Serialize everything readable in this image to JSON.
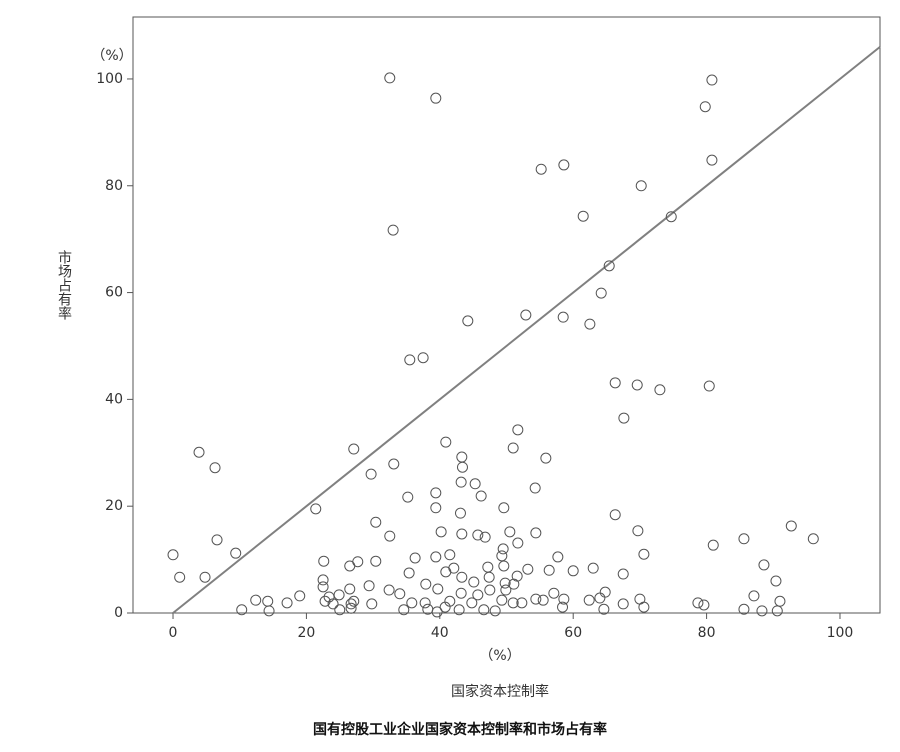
{
  "chart_data": {
    "type": "scatter",
    "caption": "国有控股工业企业国家资本控制率和市场占有率",
    "xlabel": "国家资本控制率",
    "ylabel": "市场占有率",
    "x_unit": "（%）",
    "y_unit": "（%）",
    "xlim": [
      -6,
      106
    ],
    "ylim": [
      0,
      111.6
    ],
    "xticks": [
      0,
      20,
      40,
      60,
      80,
      100
    ],
    "yticks": [
      0,
      20,
      40,
      60,
      80,
      100
    ],
    "color": "#555555",
    "reference_line": {
      "x": [
        0,
        106
      ],
      "y": [
        0,
        106
      ],
      "color": "#808080"
    },
    "x": [
      32.5,
      39.4,
      80.8,
      79.8,
      80.8,
      58.6,
      55.2,
      70.2,
      61.5,
      74.7,
      33,
      65.4,
      64.2,
      52.9,
      44.2,
      58.5,
      62.5,
      35.5,
      37.5,
      66.3,
      69.6,
      80.4,
      73,
      67.6,
      40.9,
      51.7,
      3.9,
      6.3,
      27.1,
      43.3,
      43.4,
      55.9,
      51,
      33.1,
      29.7,
      43.2,
      45.3,
      46.2,
      54.3,
      35.2,
      39.4,
      39.4,
      49.6,
      21.4,
      43.1,
      66.3,
      30.4,
      40.2,
      43.3,
      45.7,
      46.8,
      50.5,
      54.4,
      69.7,
      92.7,
      96,
      85.6,
      6.6,
      32.5,
      51.7,
      81,
      49.5,
      9.4,
      0,
      70.6,
      41.5,
      39.4,
      36.3,
      49.3,
      57.7,
      22.6,
      27.7,
      30.4,
      26.5,
      49.6,
      63,
      88.6,
      42.1,
      47.2,
      53.2,
      56.4,
      60,
      1,
      4.8,
      67.5,
      35.4,
      40.9,
      43.3,
      47.4,
      51.6,
      22.5,
      90.4,
      49.8,
      29.4,
      37.9,
      45.1,
      51.1,
      22.5,
      26.5,
      32.4,
      39.7,
      47.5,
      49.9,
      43.2,
      57.1,
      64.8,
      87.1,
      23.4,
      24.9,
      34,
      45.7,
      19,
      12.4,
      14.2,
      22.8,
      27.1,
      35.8,
      41.5,
      49.3,
      54.4,
      58.6,
      62.4,
      64,
      70,
      91,
      17.1,
      24,
      26.7,
      29.8,
      37.8,
      44.8,
      51,
      52.3,
      55.5,
      67.5,
      78.7,
      79.6,
      10.3,
      14.4,
      25,
      26.7,
      34.6,
      38.2,
      40.8,
      42.9,
      46.6,
      48.3,
      58.4,
      64.6,
      70.6,
      85.6,
      88.3,
      90.6,
      39.6
    ],
    "y": [
      100.2,
      96.4,
      99.8,
      94.8,
      84.8,
      83.9,
      83.1,
      80,
      74.3,
      74.2,
      71.7,
      65,
      59.9,
      55.8,
      54.7,
      55.4,
      54.1,
      47.4,
      47.8,
      43.1,
      42.7,
      42.5,
      41.8,
      36.5,
      32,
      34.3,
      30.1,
      27.2,
      30.7,
      29.2,
      27.3,
      29,
      30.9,
      27.9,
      26,
      24.5,
      24.2,
      21.9,
      23.4,
      21.7,
      22.5,
      19.7,
      19.7,
      19.5,
      18.7,
      18.4,
      17,
      15.2,
      14.8,
      14.6,
      14.2,
      15.2,
      15,
      15.4,
      16.3,
      13.9,
      13.9,
      13.7,
      14.4,
      13.1,
      12.7,
      12,
      11.2,
      10.9,
      11,
      10.9,
      10.5,
      10.3,
      10.7,
      10.5,
      9.7,
      9.6,
      9.7,
      8.8,
      8.8,
      8.4,
      9,
      8.4,
      8.6,
      8.2,
      8,
      7.9,
      6.7,
      6.7,
      7.3,
      7.5,
      7.7,
      6.7,
      6.7,
      6.9,
      6.2,
      6,
      5.6,
      5.1,
      5.4,
      5.8,
      5.4,
      4.9,
      4.5,
      4.3,
      4.5,
      4.3,
      4.3,
      3.7,
      3.7,
      3.9,
      3.2,
      3,
      3.4,
      3.6,
      3.4,
      3.2,
      2.4,
      2.2,
      2.2,
      2.2,
      1.9,
      2.2,
      2.4,
      2.6,
      2.6,
      2.4,
      2.8,
      2.6,
      2.2,
      1.9,
      1.7,
      1.7,
      1.7,
      1.9,
      1.9,
      1.9,
      1.9,
      2.4,
      1.7,
      1.9,
      1.5,
      0.6,
      0.4,
      0.6,
      0.9,
      0.6,
      0.7,
      1.1,
      0.6,
      0.6,
      0.4,
      1.1,
      0.7,
      1.1,
      0.7,
      0.4,
      0.4,
      0.2
    ]
  }
}
